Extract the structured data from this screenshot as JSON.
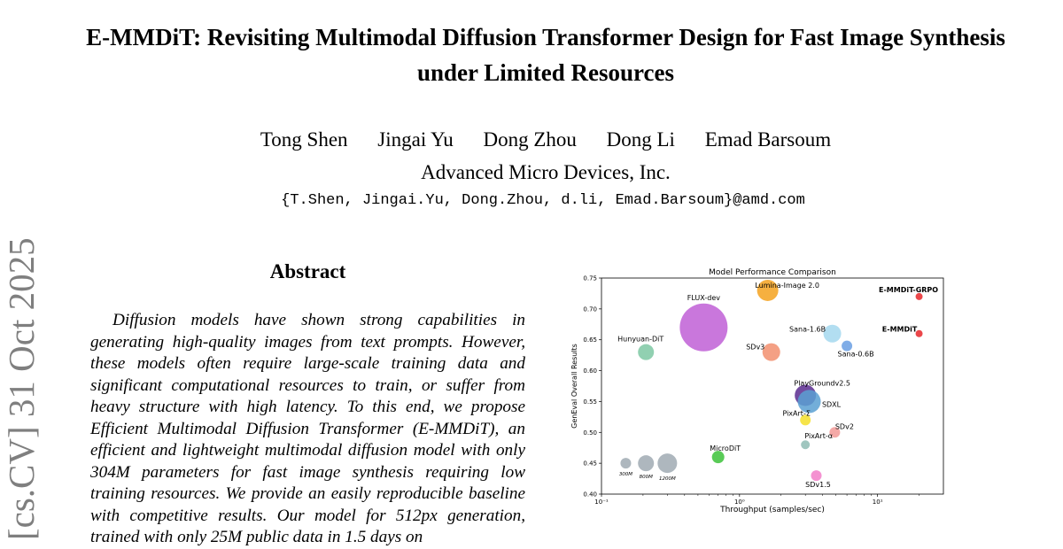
{
  "paper": {
    "title": "E-MMDiT: Revisiting Multimodal Diffusion Transformer Design for Fast Image Synthesis under Limited Resources",
    "authors": [
      "Tong Shen",
      "Jingai Yu",
      "Dong Zhou",
      "Dong Li",
      "Emad Barsoum"
    ],
    "affiliation": "Advanced Micro Devices, Inc.",
    "emails": "{T.Shen, Jingai.Yu, Dong.Zhou, d.li, Emad.Barsoum}@amd.com",
    "arxiv_stamp": "[cs.CV]  31 Oct 2025",
    "abstract_heading": "Abstract",
    "abstract_text": "Diffusion models have shown strong capabilities in generating high-quality images from text prompts. However, these models often require large-scale training data and significant computational resources to train, or suffer from heavy structure with high latency. To this end, we propose Efficient Multimodal Diffusion Transformer (E-MMDiT), an efficient and lightweight multimodal diffusion model with only 304M parameters for fast image synthesis requiring low training resources. We provide an easily reproducible baseline with competitive results. Our model for 512px generation, trained with only 25M public data in 1.5 days on"
  },
  "chart_data": {
    "type": "scatter",
    "title": "Model Performance Comparison",
    "xlabel": "Throughput (samples/sec)",
    "ylabel": "GenEval Overall Results",
    "xscale": "log",
    "xlim": [
      0.1,
      30
    ],
    "ylim": [
      0.4,
      0.75
    ],
    "x_ticks": [
      {
        "value": 0.1,
        "label": "10⁻¹"
      },
      {
        "value": 1,
        "label": "10⁰"
      },
      {
        "value": 10,
        "label": "10¹"
      }
    ],
    "y_ticks": [
      0.4,
      0.45,
      0.5,
      0.55,
      0.6,
      0.65,
      0.7,
      0.75
    ],
    "points": [
      {
        "name": "Lumina-Image 2.0",
        "x": 1.6,
        "y": 0.73,
        "size": 12,
        "color": "#f4a21f",
        "bold": false
      },
      {
        "name": "E-MMDiT-GRPO",
        "x": 20,
        "y": 0.72,
        "size": 4,
        "color": "#e8272a",
        "bold": true
      },
      {
        "name": "FLUX-dev",
        "x": 0.55,
        "y": 0.67,
        "size": 27,
        "color": "#c05fd6",
        "bold": false
      },
      {
        "name": "E-MMDiT",
        "x": 20,
        "y": 0.66,
        "size": 4,
        "color": "#e8272a",
        "bold": true
      },
      {
        "name": "Sana-1.6B",
        "x": 4.7,
        "y": 0.66,
        "size": 10,
        "color": "#a5d8ef",
        "bold": false
      },
      {
        "name": "Sana-0.6B",
        "x": 6.0,
        "y": 0.64,
        "size": 6,
        "color": "#6a9fe3",
        "bold": false
      },
      {
        "name": "Hunyuan-DiT",
        "x": 0.21,
        "y": 0.63,
        "size": 9,
        "color": "#7ec8a3",
        "bold": false
      },
      {
        "name": "SDv3",
        "x": 1.7,
        "y": 0.63,
        "size": 10,
        "color": "#f28f6e",
        "bold": false
      },
      {
        "name": "PlayGroundv2.5",
        "x": 3.0,
        "y": 0.56,
        "size": 12,
        "color": "#5b2b8f",
        "bold": false
      },
      {
        "name": "SDXL",
        "x": 3.2,
        "y": 0.55,
        "size": 13,
        "color": "#5aa0d2",
        "bold": false
      },
      {
        "name": "PixArt-Σ",
        "x": 3.0,
        "y": 0.52,
        "size": 6,
        "color": "#f5df2a",
        "bold": false
      },
      {
        "name": "SDv2",
        "x": 4.9,
        "y": 0.5,
        "size": 6,
        "color": "#f29a98",
        "bold": false
      },
      {
        "name": "PixArt-α",
        "x": 3.0,
        "y": 0.48,
        "size": 5,
        "color": "#8fbcb4",
        "bold": false
      },
      {
        "name": "MicroDiT",
        "x": 0.7,
        "y": 0.46,
        "size": 7,
        "color": "#3cc23a",
        "bold": false
      },
      {
        "name": "SDv1.5",
        "x": 3.6,
        "y": 0.43,
        "size": 6,
        "color": "#f27fc9",
        "bold": false
      }
    ],
    "size_legend": [
      {
        "label": "300M",
        "x": 0.15,
        "y": 0.45,
        "size": 6
      },
      {
        "label": "800M",
        "x": 0.21,
        "y": 0.45,
        "size": 9
      },
      {
        "label": "1200M",
        "x": 0.3,
        "y": 0.45,
        "size": 11
      }
    ],
    "size_legend_color": "#9aa5ae"
  }
}
